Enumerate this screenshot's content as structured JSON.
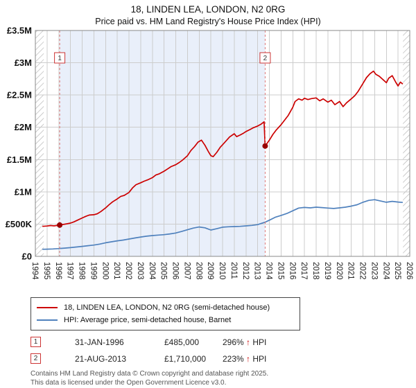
{
  "title": "18, LINDEN LEA, LONDON, N2 0RG",
  "subtitle": "Price paid vs. HM Land Registry's House Price Index (HPI)",
  "colors": {
    "red_line": "#cc0000",
    "blue_line": "#4f81bd",
    "shaded_region": "#e9effa",
    "dashed_marker": "#dd7777",
    "grid": "#cccccc",
    "sale_dot": "#990000",
    "marker_box_border": "#cc3333",
    "plot_border": "#888888"
  },
  "chart_data": {
    "type": "line",
    "title": "18, LINDEN LEA, LONDON, N2 0RG",
    "subtitle": "Price paid vs. HM Land Registry's House Price Index (HPI)",
    "xlabel": "",
    "ylabel": "",
    "xlim": [
      1994,
      2026
    ],
    "ylim": [
      0,
      3500000
    ],
    "grid": true,
    "legend_position": "below",
    "y_tick_values": [
      0,
      500000,
      1000000,
      1500000,
      2000000,
      2500000,
      3000000,
      3500000
    ],
    "y_tick_labels": [
      "£0",
      "£500K",
      "£1M",
      "£1.5M",
      "£2M",
      "£2.5M",
      "£3M",
      "£3.5M"
    ],
    "x_ticks": [
      1994,
      1995,
      1996,
      1997,
      1998,
      1999,
      2000,
      2001,
      2002,
      2003,
      2004,
      2005,
      2006,
      2007,
      2008,
      2009,
      2010,
      2011,
      2012,
      2013,
      2014,
      2015,
      2016,
      2017,
      2018,
      2019,
      2020,
      2021,
      2022,
      2023,
      2024,
      2025,
      2026
    ],
    "hatch_regions": [
      [
        1994,
        1994.72
      ],
      [
        2025.42,
        2026
      ]
    ],
    "series": [
      {
        "name": "18, LINDEN LEA, LONDON, N2 0RG (semi-detached house)",
        "color": "#cc0000",
        "x": [
          1994.6,
          1995.0,
          1995.3,
          1995.6,
          1996.0,
          1996.08,
          1996.4,
          1996.7,
          1997.0,
          1997.3,
          1997.6,
          1998.0,
          1998.3,
          1998.6,
          1999.0,
          1999.3,
          1999.6,
          2000.0,
          2000.3,
          2000.6,
          2001.0,
          2001.3,
          2001.6,
          2002.0,
          2002.3,
          2002.6,
          2003.0,
          2003.3,
          2003.6,
          2004.0,
          2004.3,
          2004.6,
          2005.0,
          2005.3,
          2005.6,
          2006.0,
          2006.3,
          2006.6,
          2007.0,
          2007.3,
          2007.6,
          2007.9,
          2008.2,
          2008.5,
          2008.8,
          2009.0,
          2009.2,
          2009.5,
          2009.8,
          2010.0,
          2010.3,
          2010.6,
          2011.0,
          2011.2,
          2011.5,
          2011.8,
          2012.0,
          2012.3,
          2012.6,
          2013.0,
          2013.3,
          2013.55,
          2013.64,
          2014.0,
          2014.3,
          2014.6,
          2015.0,
          2015.3,
          2015.6,
          2016.0,
          2016.2,
          2016.5,
          2016.8,
          2017.0,
          2017.3,
          2017.6,
          2018.0,
          2018.3,
          2018.6,
          2019.0,
          2019.3,
          2019.6,
          2020.0,
          2020.3,
          2020.6,
          2021.0,
          2021.3,
          2021.6,
          2022.0,
          2022.3,
          2022.6,
          2022.9,
          2023.1,
          2023.4,
          2023.7,
          2024.0,
          2024.2,
          2024.5,
          2024.8,
          2025.0,
          2025.2,
          2025.4
        ],
        "values": [
          465000,
          470000,
          478000,
          472000,
          483000,
          485000,
          495000,
          505000,
          515000,
          535000,
          560000,
          595000,
          620000,
          640000,
          645000,
          660000,
          695000,
          750000,
          800000,
          845000,
          890000,
          930000,
          945000,
          990000,
          1060000,
          1110000,
          1140000,
          1165000,
          1185000,
          1220000,
          1260000,
          1280000,
          1320000,
          1355000,
          1390000,
          1420000,
          1455000,
          1495000,
          1560000,
          1640000,
          1700000,
          1770000,
          1800000,
          1720000,
          1620000,
          1560000,
          1545000,
          1610000,
          1690000,
          1730000,
          1790000,
          1850000,
          1900000,
          1855000,
          1880000,
          1910000,
          1935000,
          1960000,
          1990000,
          2020000,
          2050000,
          2085000,
          1710000,
          1800000,
          1890000,
          1960000,
          2040000,
          2110000,
          2180000,
          2310000,
          2400000,
          2440000,
          2420000,
          2450000,
          2430000,
          2445000,
          2455000,
          2410000,
          2440000,
          2390000,
          2420000,
          2350000,
          2400000,
          2320000,
          2380000,
          2440000,
          2490000,
          2560000,
          2680000,
          2770000,
          2830000,
          2870000,
          2820000,
          2790000,
          2740000,
          2690000,
          2760000,
          2800000,
          2700000,
          2640000,
          2700000,
          2670000
        ]
      },
      {
        "name": "HPI: Average price, semi-detached house, Barnet",
        "color": "#4f81bd",
        "x": [
          1994.6,
          1995.0,
          1995.5,
          1996.0,
          1996.08,
          1996.5,
          1997.0,
          1997.5,
          1998.0,
          1998.5,
          1999.0,
          1999.5,
          2000.0,
          2000.5,
          2001.0,
          2001.5,
          2002.0,
          2002.5,
          2003.0,
          2003.5,
          2004.0,
          2004.5,
          2005.0,
          2005.5,
          2006.0,
          2006.5,
          2007.0,
          2007.5,
          2008.0,
          2008.5,
          2009.0,
          2009.5,
          2010.0,
          2010.5,
          2011.0,
          2011.5,
          2012.0,
          2012.5,
          2013.0,
          2013.64,
          2014.0,
          2014.5,
          2015.0,
          2015.5,
          2016.0,
          2016.5,
          2017.0,
          2017.5,
          2018.0,
          2018.5,
          2019.0,
          2019.5,
          2020.0,
          2020.5,
          2021.0,
          2021.5,
          2022.0,
          2022.5,
          2023.0,
          2023.5,
          2024.0,
          2024.5,
          2025.0,
          2025.4
        ],
        "values": [
          110000,
          112000,
          115000,
          120000,
          122000,
          128000,
          135000,
          145000,
          155000,
          165000,
          175000,
          190000,
          210000,
          225000,
          240000,
          252000,
          268000,
          285000,
          300000,
          312000,
          322000,
          330000,
          336000,
          348000,
          362000,
          385000,
          412000,
          438000,
          455000,
          442000,
          408000,
          428000,
          452000,
          458000,
          462000,
          465000,
          472000,
          480000,
          492000,
          529000,
          560000,
          605000,
          635000,
          665000,
          706000,
          748000,
          758000,
          752000,
          762000,
          756000,
          748000,
          742000,
          752000,
          762000,
          778000,
          800000,
          838000,
          868000,
          878000,
          858000,
          838000,
          852000,
          842000,
          835000
        ]
      }
    ],
    "markers": [
      {
        "label": "1",
        "x": 1996.08,
        "value": 485000,
        "date": "31-JAN-1996"
      },
      {
        "label": "2",
        "x": 2013.64,
        "value": 1710000,
        "date": "21-AUG-2013"
      }
    ]
  },
  "sales": [
    {
      "num": "1",
      "date": "31-JAN-1996",
      "price": "£485,000",
      "pct": "296%",
      "arrow": "↑",
      "ref": "HPI"
    },
    {
      "num": "2",
      "date": "21-AUG-2013",
      "price": "£1,710,000",
      "pct": "223%",
      "arrow": "↑",
      "ref": "HPI"
    }
  ],
  "footer": {
    "line1": "Contains HM Land Registry data © Crown copyright and database right 2025.",
    "line2": "This data is licensed under the Open Government Licence v3.0."
  }
}
